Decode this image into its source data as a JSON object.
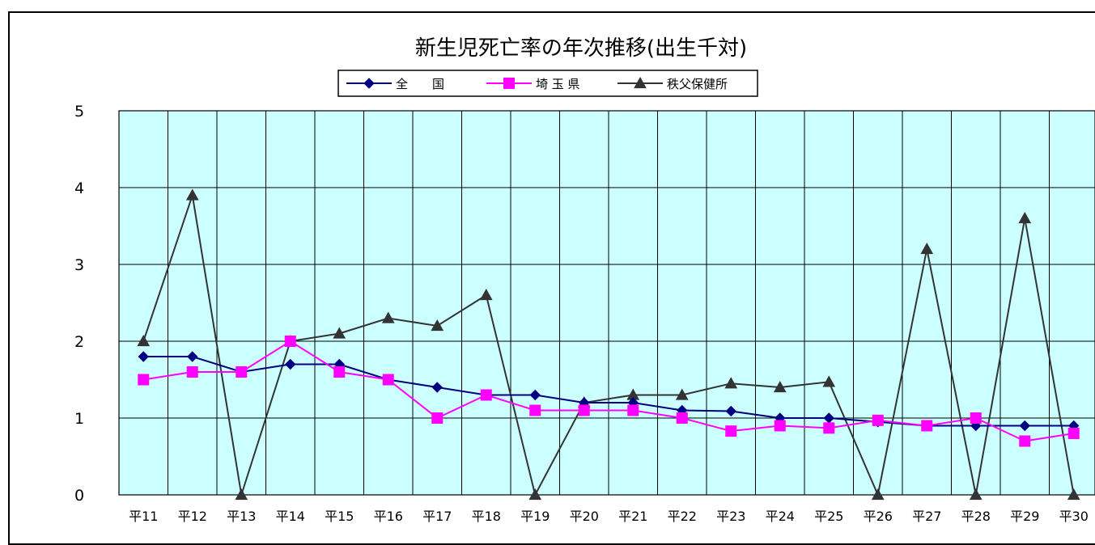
{
  "chart_data": {
    "type": "line",
    "title": "新生児死亡率の年次推移(出生千対)",
    "xlabel": "",
    "ylabel": "",
    "ylim": [
      0,
      5
    ],
    "yticks": [
      0,
      1,
      2,
      3,
      4,
      5
    ],
    "grid": true,
    "legend_position": "top-center",
    "plot_background": "#ccffff",
    "categories": [
      "平11",
      "平12",
      "平13",
      "平14",
      "平15",
      "平16",
      "平17",
      "平18",
      "平19",
      "平20",
      "平21",
      "平22",
      "平23",
      "平24",
      "平25",
      "平26",
      "平27",
      "平28",
      "平29",
      "平30"
    ],
    "series": [
      {
        "name": "全　　国",
        "color": "#000080",
        "marker": "diamond",
        "values": [
          1.8,
          1.8,
          1.6,
          1.7,
          1.7,
          1.5,
          1.4,
          1.3,
          1.3,
          1.2,
          1.2,
          1.1,
          1.09,
          1.0,
          1.0,
          0.95,
          0.9,
          0.9,
          0.9,
          0.9
        ]
      },
      {
        "name": "埼 玉 県",
        "color": "#ff00ff",
        "marker": "square",
        "values": [
          1.5,
          1.6,
          1.6,
          2.0,
          1.6,
          1.5,
          1.0,
          1.3,
          1.1,
          1.1,
          1.1,
          1.0,
          0.83,
          0.9,
          0.87,
          0.97,
          0.9,
          1.0,
          0.7,
          0.8
        ]
      },
      {
        "name": "秩父保健所",
        "color": "#333333",
        "marker": "triangle",
        "values": [
          2.0,
          3.9,
          0.0,
          2.0,
          2.1,
          2.3,
          2.2,
          2.6,
          0.0,
          1.2,
          1.3,
          1.3,
          1.45,
          1.4,
          1.47,
          0.0,
          3.2,
          0.0,
          3.6,
          0.0
        ]
      }
    ]
  }
}
